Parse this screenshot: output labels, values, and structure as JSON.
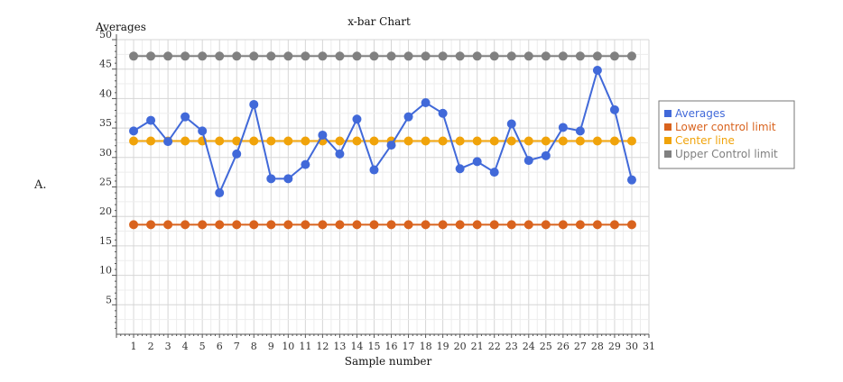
{
  "question_label": "A.",
  "chart_data": {
    "type": "line",
    "title": "x-bar Chart",
    "xlabel": "Sample number",
    "ylabel": "Averages",
    "xlim": [
      0,
      31
    ],
    "ylim": [
      0,
      50
    ],
    "x_ticks": [
      1,
      2,
      3,
      4,
      5,
      6,
      7,
      8,
      9,
      10,
      11,
      12,
      13,
      14,
      15,
      16,
      17,
      18,
      19,
      20,
      21,
      22,
      23,
      24,
      25,
      26,
      27,
      28,
      29,
      30,
      31
    ],
    "y_ticks": [
      5,
      10,
      15,
      20,
      25,
      30,
      35,
      40,
      45,
      50
    ],
    "grid": true,
    "legend_position": "right",
    "x": [
      1,
      2,
      3,
      4,
      5,
      6,
      7,
      8,
      9,
      10,
      11,
      12,
      13,
      14,
      15,
      16,
      17,
      18,
      19,
      20,
      21,
      22,
      23,
      24,
      25,
      26,
      27,
      28,
      29,
      30
    ],
    "series": [
      {
        "name": "Averages",
        "color": "#4169d9",
        "values": [
          34.5,
          36.3,
          32.7,
          36.9,
          34.5,
          24.0,
          30.6,
          39.0,
          26.4,
          26.4,
          28.8,
          33.8,
          30.6,
          36.5,
          27.9,
          32.1,
          36.9,
          39.3,
          37.5,
          28.1,
          29.3,
          27.5,
          35.7,
          29.5,
          30.3,
          35.1,
          34.5,
          44.8,
          38.1,
          26.2
        ]
      },
      {
        "name": "Lower control limit",
        "color": "#d9631e",
        "values": [
          18.6,
          18.6,
          18.6,
          18.6,
          18.6,
          18.6,
          18.6,
          18.6,
          18.6,
          18.6,
          18.6,
          18.6,
          18.6,
          18.6,
          18.6,
          18.6,
          18.6,
          18.6,
          18.6,
          18.6,
          18.6,
          18.6,
          18.6,
          18.6,
          18.6,
          18.6,
          18.6,
          18.6,
          18.6,
          18.6
        ]
      },
      {
        "name": "Center line",
        "color": "#f0a30a",
        "values": [
          32.8,
          32.8,
          32.8,
          32.8,
          32.8,
          32.8,
          32.8,
          32.8,
          32.8,
          32.8,
          32.8,
          32.8,
          32.8,
          32.8,
          32.8,
          32.8,
          32.8,
          32.8,
          32.8,
          32.8,
          32.8,
          32.8,
          32.8,
          32.8,
          32.8,
          32.8,
          32.8,
          32.8,
          32.8,
          32.8
        ]
      },
      {
        "name": "Upper Control limit",
        "color": "#808080",
        "values": [
          47.2,
          47.2,
          47.2,
          47.2,
          47.2,
          47.2,
          47.2,
          47.2,
          47.2,
          47.2,
          47.2,
          47.2,
          47.2,
          47.2,
          47.2,
          47.2,
          47.2,
          47.2,
          47.2,
          47.2,
          47.2,
          47.2,
          47.2,
          47.2,
          47.2,
          47.2,
          47.2,
          47.2,
          47.2,
          47.2
        ]
      }
    ]
  }
}
